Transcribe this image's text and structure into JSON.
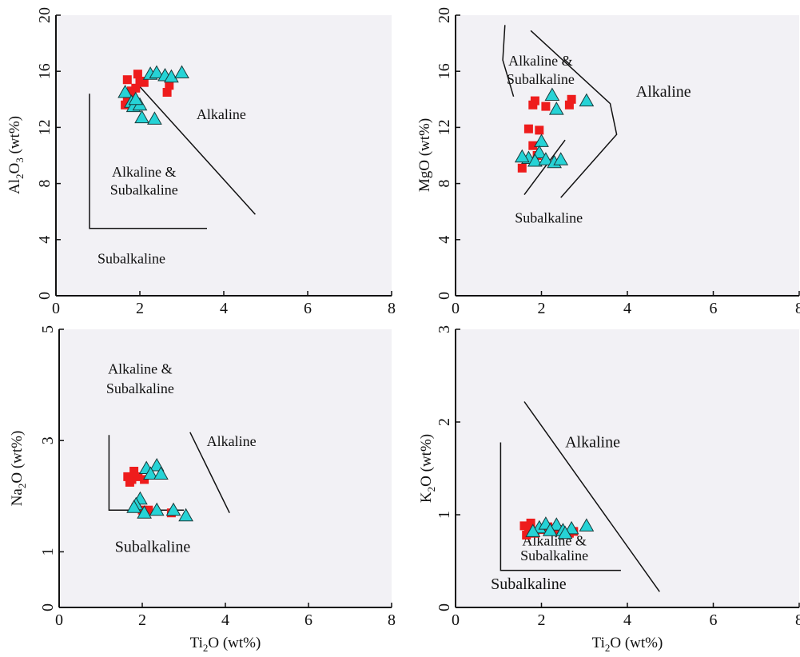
{
  "colors": {
    "panel_bg": "#f2f1f5",
    "axis": "#111111",
    "series_square": "#ee1c1c",
    "series_triangle": "#26d3d6",
    "triangle_stroke": "#1a3a3a",
    "boundary": "#111111"
  },
  "chart_data": [
    {
      "type": "scatter",
      "panel": "top-left",
      "xlabel": "",
      "ylabel": "Al2O3 (wt%)",
      "ylabel_parts": {
        "base": "Al",
        "sub1": "2",
        "mid": "O",
        "sub2": "3",
        "rest": " (wt%)"
      },
      "xlim": [
        0,
        8
      ],
      "ylim": [
        0,
        20
      ],
      "xticks": [
        0,
        2,
        4,
        6,
        8
      ],
      "yticks": [
        0,
        4,
        8,
        12,
        16,
        20
      ],
      "grid": false,
      "boundaries": [
        [
          [
            0.8,
            14.4
          ],
          [
            0.8,
            4.8
          ],
          [
            3.6,
            4.8
          ]
        ],
        [
          [
            2.0,
            14.9
          ],
          [
            4.75,
            5.8
          ]
        ]
      ],
      "annotations": [
        {
          "text": "Alkaline",
          "x": 3.35,
          "y": 12.6,
          "anchor": "start",
          "big": false
        },
        {
          "text": "Alkaline &",
          "x": 2.1,
          "y": 8.5,
          "anchor": "middle",
          "big": false
        },
        {
          "text": "Subalkaline",
          "x": 2.1,
          "y": 7.2,
          "anchor": "middle",
          "big": false
        },
        {
          "text": "Subalkaline",
          "x": 1.8,
          "y": 2.3,
          "anchor": "middle",
          "big": false
        }
      ],
      "series": [
        {
          "marker": "square",
          "points": [
            [
              1.7,
              15.4
            ],
            [
              1.95,
              15.8
            ],
            [
              2.0,
              15.3
            ],
            [
              2.1,
              15.2
            ],
            [
              1.9,
              14.8
            ],
            [
              1.8,
              14.6
            ],
            [
              1.75,
              14.2
            ],
            [
              1.7,
              13.9
            ],
            [
              1.65,
              13.6
            ],
            [
              2.7,
              15.0
            ],
            [
              2.65,
              14.5
            ]
          ]
        },
        {
          "marker": "triangle",
          "points": [
            [
              1.65,
              14.5
            ],
            [
              1.8,
              13.8
            ],
            [
              1.85,
              13.5
            ],
            [
              2.0,
              13.6
            ],
            [
              1.9,
              14.0
            ],
            [
              2.05,
              12.7
            ],
            [
              2.35,
              12.6
            ],
            [
              2.25,
              15.8
            ],
            [
              2.4,
              15.9
            ],
            [
              2.6,
              15.7
            ],
            [
              2.75,
              15.6
            ],
            [
              3.0,
              15.9
            ]
          ]
        }
      ]
    },
    {
      "type": "scatter",
      "panel": "top-right",
      "xlabel": "",
      "ylabel": "MgO (wt%)",
      "xlim": [
        0,
        8
      ],
      "ylim": [
        0,
        20
      ],
      "xticks": [
        0,
        2,
        4,
        6,
        8
      ],
      "yticks": [
        0,
        4,
        8,
        12,
        16,
        20
      ],
      "grid": false,
      "boundaries": [
        [
          [
            1.15,
            19.3
          ],
          [
            1.1,
            16.8
          ],
          [
            1.35,
            14.2
          ]
        ],
        [
          [
            1.75,
            18.9
          ],
          [
            3.6,
            13.7
          ],
          [
            3.75,
            11.5
          ],
          [
            2.45,
            7.0
          ]
        ],
        [
          [
            1.6,
            7.2
          ],
          [
            2.55,
            11.1
          ]
        ]
      ],
      "annotations": [
        {
          "text": "Alkaline &",
          "x": 1.98,
          "y": 16.4,
          "anchor": "middle",
          "big": false
        },
        {
          "text": "Subalkaline",
          "x": 1.98,
          "y": 15.1,
          "anchor": "middle",
          "big": false
        },
        {
          "text": "Alkaline",
          "x": 4.2,
          "y": 14.2,
          "anchor": "start",
          "big": true
        },
        {
          "text": "Subalkaline",
          "x": 1.38,
          "y": 5.2,
          "anchor": "start",
          "big": false
        }
      ],
      "series": [
        {
          "marker": "square",
          "points": [
            [
              1.8,
              13.6
            ],
            [
              1.85,
              13.9
            ],
            [
              2.1,
              13.5
            ],
            [
              2.65,
              13.6
            ],
            [
              2.7,
              14.0
            ],
            [
              1.7,
              11.9
            ],
            [
              1.95,
              11.8
            ],
            [
              1.8,
              10.7
            ],
            [
              1.9,
              10.0
            ],
            [
              1.55,
              9.1
            ]
          ]
        },
        {
          "marker": "triangle",
          "points": [
            [
              2.25,
              14.3
            ],
            [
              2.35,
              13.3
            ],
            [
              3.05,
              13.9
            ],
            [
              2.0,
              11.0
            ],
            [
              1.95,
              10.2
            ],
            [
              1.7,
              9.8
            ],
            [
              1.85,
              9.6
            ],
            [
              2.1,
              9.7
            ],
            [
              2.3,
              9.5
            ],
            [
              2.45,
              9.7
            ],
            [
              1.55,
              9.9
            ]
          ]
        }
      ]
    },
    {
      "type": "scatter",
      "panel": "bottom-left",
      "xlabel": "Ti2O (wt%)",
      "xlabel_parts": {
        "base": "Ti",
        "sub": "2",
        "rest": "O (wt%)"
      },
      "ylabel": "Na2O (wt%)",
      "ylabel_parts": {
        "base": "Na",
        "sub": "2",
        "rest": "O (wt%)"
      },
      "xlim": [
        0,
        8
      ],
      "ylim": [
        0,
        5
      ],
      "xticks": [
        0,
        2,
        4,
        6,
        8
      ],
      "yticks": [
        0,
        1,
        3,
        5
      ],
      "grid": false,
      "boundaries": [
        [
          [
            1.2,
            3.1
          ],
          [
            1.2,
            1.75
          ],
          [
            3.0,
            1.75
          ]
        ],
        [
          [
            3.15,
            3.15
          ],
          [
            4.1,
            1.7
          ]
        ]
      ],
      "annotations": [
        {
          "text": "Alkaline &",
          "x": 1.95,
          "y": 4.2,
          "anchor": "middle",
          "big": false
        },
        {
          "text": "Subalkaline",
          "x": 1.95,
          "y": 3.85,
          "anchor": "middle",
          "big": false
        },
        {
          "text": "Alkaline",
          "x": 3.55,
          "y": 2.9,
          "anchor": "start",
          "big": false
        },
        {
          "text": "Subalkaline",
          "x": 2.25,
          "y": 1.0,
          "anchor": "middle",
          "big": true
        }
      ],
      "series": [
        {
          "marker": "square",
          "points": [
            [
              1.65,
              2.35
            ],
            [
              1.8,
              2.45
            ],
            [
              1.75,
              2.3
            ],
            [
              1.9,
              2.35
            ],
            [
              2.05,
              2.3
            ],
            [
              1.7,
              2.25
            ],
            [
              1.85,
              1.8
            ],
            [
              2.0,
              1.75
            ],
            [
              2.15,
              1.75
            ],
            [
              2.7,
              1.7
            ]
          ]
        },
        {
          "marker": "triangle",
          "points": [
            [
              2.1,
              2.5
            ],
            [
              2.35,
              2.55
            ],
            [
              2.2,
              2.4
            ],
            [
              2.45,
              2.4
            ],
            [
              1.95,
              1.95
            ],
            [
              1.85,
              1.85
            ],
            [
              1.8,
              1.8
            ],
            [
              2.05,
              1.7
            ],
            [
              2.35,
              1.75
            ],
            [
              2.75,
              1.75
            ],
            [
              3.05,
              1.65
            ]
          ]
        }
      ]
    },
    {
      "type": "scatter",
      "panel": "bottom-right",
      "xlabel": "Ti2O (wt%)",
      "xlabel_parts": {
        "base": "Ti",
        "sub": "2",
        "rest": "O (wt%)"
      },
      "ylabel": "K2O (wt%)",
      "ylabel_parts": {
        "base": "K",
        "sub": "2",
        "rest": "O (wt%)"
      },
      "xlim": [
        0,
        8
      ],
      "ylim": [
        0,
        3
      ],
      "xticks": [
        0,
        2,
        4,
        6,
        8
      ],
      "yticks": [
        0,
        1,
        2,
        3
      ],
      "grid": false,
      "boundaries": [
        [
          [
            1.05,
            1.78
          ],
          [
            1.05,
            0.4
          ],
          [
            3.85,
            0.4
          ]
        ],
        [
          [
            1.6,
            2.22
          ],
          [
            4.75,
            0.17
          ]
        ]
      ],
      "annotations": [
        {
          "text": "Alkaline",
          "x": 2.55,
          "y": 1.73,
          "anchor": "start",
          "big": true
        },
        {
          "text": "Alkaline &",
          "x": 2.3,
          "y": 0.67,
          "anchor": "middle",
          "big": false
        },
        {
          "text": "Subalkaline",
          "x": 2.3,
          "y": 0.51,
          "anchor": "middle",
          "big": false
        },
        {
          "text": "Subalkaline",
          "x": 1.7,
          "y": 0.2,
          "anchor": "middle",
          "big": true
        }
      ],
      "series": [
        {
          "marker": "square",
          "points": [
            [
              1.6,
              0.88
            ],
            [
              1.75,
              0.91
            ],
            [
              1.7,
              0.83
            ],
            [
              1.85,
              0.8
            ],
            [
              1.65,
              0.78
            ],
            [
              2.0,
              0.84
            ],
            [
              2.15,
              0.87
            ],
            [
              2.4,
              0.84
            ],
            [
              2.65,
              0.8
            ],
            [
              2.75,
              0.82
            ]
          ]
        },
        {
          "marker": "triangle",
          "points": [
            [
              1.95,
              0.86
            ],
            [
              2.1,
              0.9
            ],
            [
              2.35,
              0.89
            ],
            [
              2.5,
              0.83
            ],
            [
              2.7,
              0.85
            ],
            [
              3.05,
              0.88
            ],
            [
              2.2,
              0.83
            ],
            [
              1.8,
              0.82
            ],
            [
              2.55,
              0.8
            ]
          ]
        }
      ]
    }
  ]
}
